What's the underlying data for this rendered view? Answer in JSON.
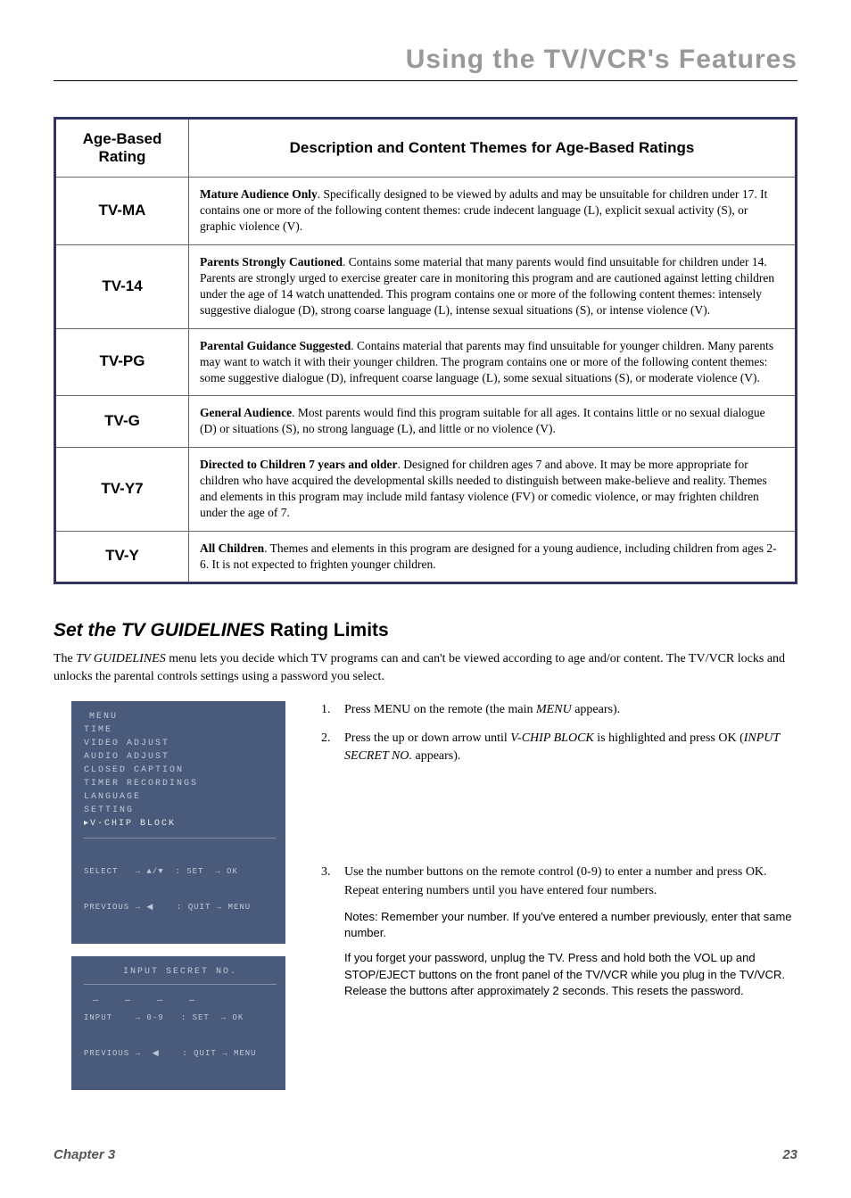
{
  "page": {
    "title": "Using the TV/VCR's Features",
    "chapter_label": "Chapter 3",
    "page_number": "23"
  },
  "table": {
    "header_rating": "Age-Based Rating",
    "header_desc": "Description and Content Themes for Age-Based Ratings",
    "rows": [
      {
        "code": "TV-MA",
        "lead": "Mature Audience Only",
        "rest": ". Specifically designed to be viewed by adults and may be unsuitable for children under 17.  It contains one or more of the following content themes:  crude indecent language (L), explicit sexual activity (S), or graphic violence (V)."
      },
      {
        "code": "TV-14",
        "lead": "Parents Strongly Cautioned",
        "rest": ". Contains some material that many parents would find unsuitable for children under 14.  Parents are strongly urged to exercise greater care in monitoring this program and are cautioned against letting children under the age of 14 watch unattended. This program contains one or more of the following content themes:  intensely suggestive dialogue (D), strong coarse language (L), intense sexual situations (S), or intense violence (V)."
      },
      {
        "code": "TV-PG",
        "lead": "Parental Guidance Suggested",
        "rest": ". Contains material that parents may find unsuitable for younger children.  Many parents may want to watch it with their younger children. The program contains one or more of the following content themes: some suggestive dialogue (D), infrequent coarse language (L), some sexual situations (S), or moderate violence (V)."
      },
      {
        "code": "TV-G",
        "lead": "General Audience",
        "rest": ". Most parents would find this program suitable for all ages. It contains little or no sexual dialogue (D) or situations (S), no strong language (L), and little or no violence (V)."
      },
      {
        "code": "TV-Y7",
        "lead": "Directed to Children 7 years and older",
        "rest": ". Designed for children ages 7 and above. It may be more appropriate for children who have acquired the developmental skills needed to distinguish between make-believe and reality.  Themes and elements in this program may include mild fantasy violence (FV) or comedic violence, or may frighten children under the age of 7."
      },
      {
        "code": "TV-Y",
        "lead": "All Children",
        "rest": ". Themes and elements in this program are designed for a young audience, including children from ages 2-6. It is not expected to frighten younger children."
      }
    ]
  },
  "section": {
    "heading_italic": "Set the TV GUIDELINES",
    "heading_plain": " Rating Limits",
    "intro_pre": "The ",
    "intro_em": "TV GUIDELINES",
    "intro_post": " menu lets you decide which TV programs can and can't be viewed according to age and/or content. The TV/VCR locks and unlocks the parental controls settings using a password you select."
  },
  "osd_menu": {
    "title": "MENU",
    "items": [
      "TIME",
      "VIDEO ADJUST",
      "AUDIO ADJUST",
      "CLOSED CAPTION",
      "TIMER RECORDINGS",
      "LANGUAGE",
      "SETTING"
    ],
    "selected": "▸V-CHIP BLOCK",
    "footer1": "SELECT   → ▲/▼  : SET  → OK",
    "footer2": "PREVIOUS → ◀    : QUIT → MENU"
  },
  "osd_secret": {
    "title": "INPUT SECRET NO.",
    "dashes": "— — — —",
    "footer1": "INPUT    → 0-9   : SET  → OK",
    "footer2": "PREVIOUS →  ◀    : QUIT → MENU"
  },
  "steps": {
    "s1_pre": "Press MENU on the remote (the main ",
    "s1_em": "MENU",
    "s1_post": " appears).",
    "s2_pre": "Press the up or down arrow until ",
    "s2_em1": "V-CHIP BLOCK",
    "s2_mid": " is highlighted and press OK (",
    "s2_em2": "INPUT SECRET NO.",
    "s2_post": " appears).",
    "s3": "Use the number buttons on the remote control (0-9) to enter a number and press OK. Repeat entering numbers until you have entered four numbers.",
    "note1": "Notes: Remember your number. If you've entered a number previously, enter that same number.",
    "note2": "If you forget your password, unplug the TV. Press and hold both the VOL up and STOP/EJECT buttons on the front panel of the TV/VCR while you plug in the TV/VCR. Release the buttons after approximately 2 seconds. This resets the password."
  },
  "colors": {
    "title_gray": "#999999",
    "table_border": "#333366",
    "osd_bg": "#4a5a7a",
    "osd_text": "#c0c8d8",
    "footer_gray": "#555555"
  }
}
